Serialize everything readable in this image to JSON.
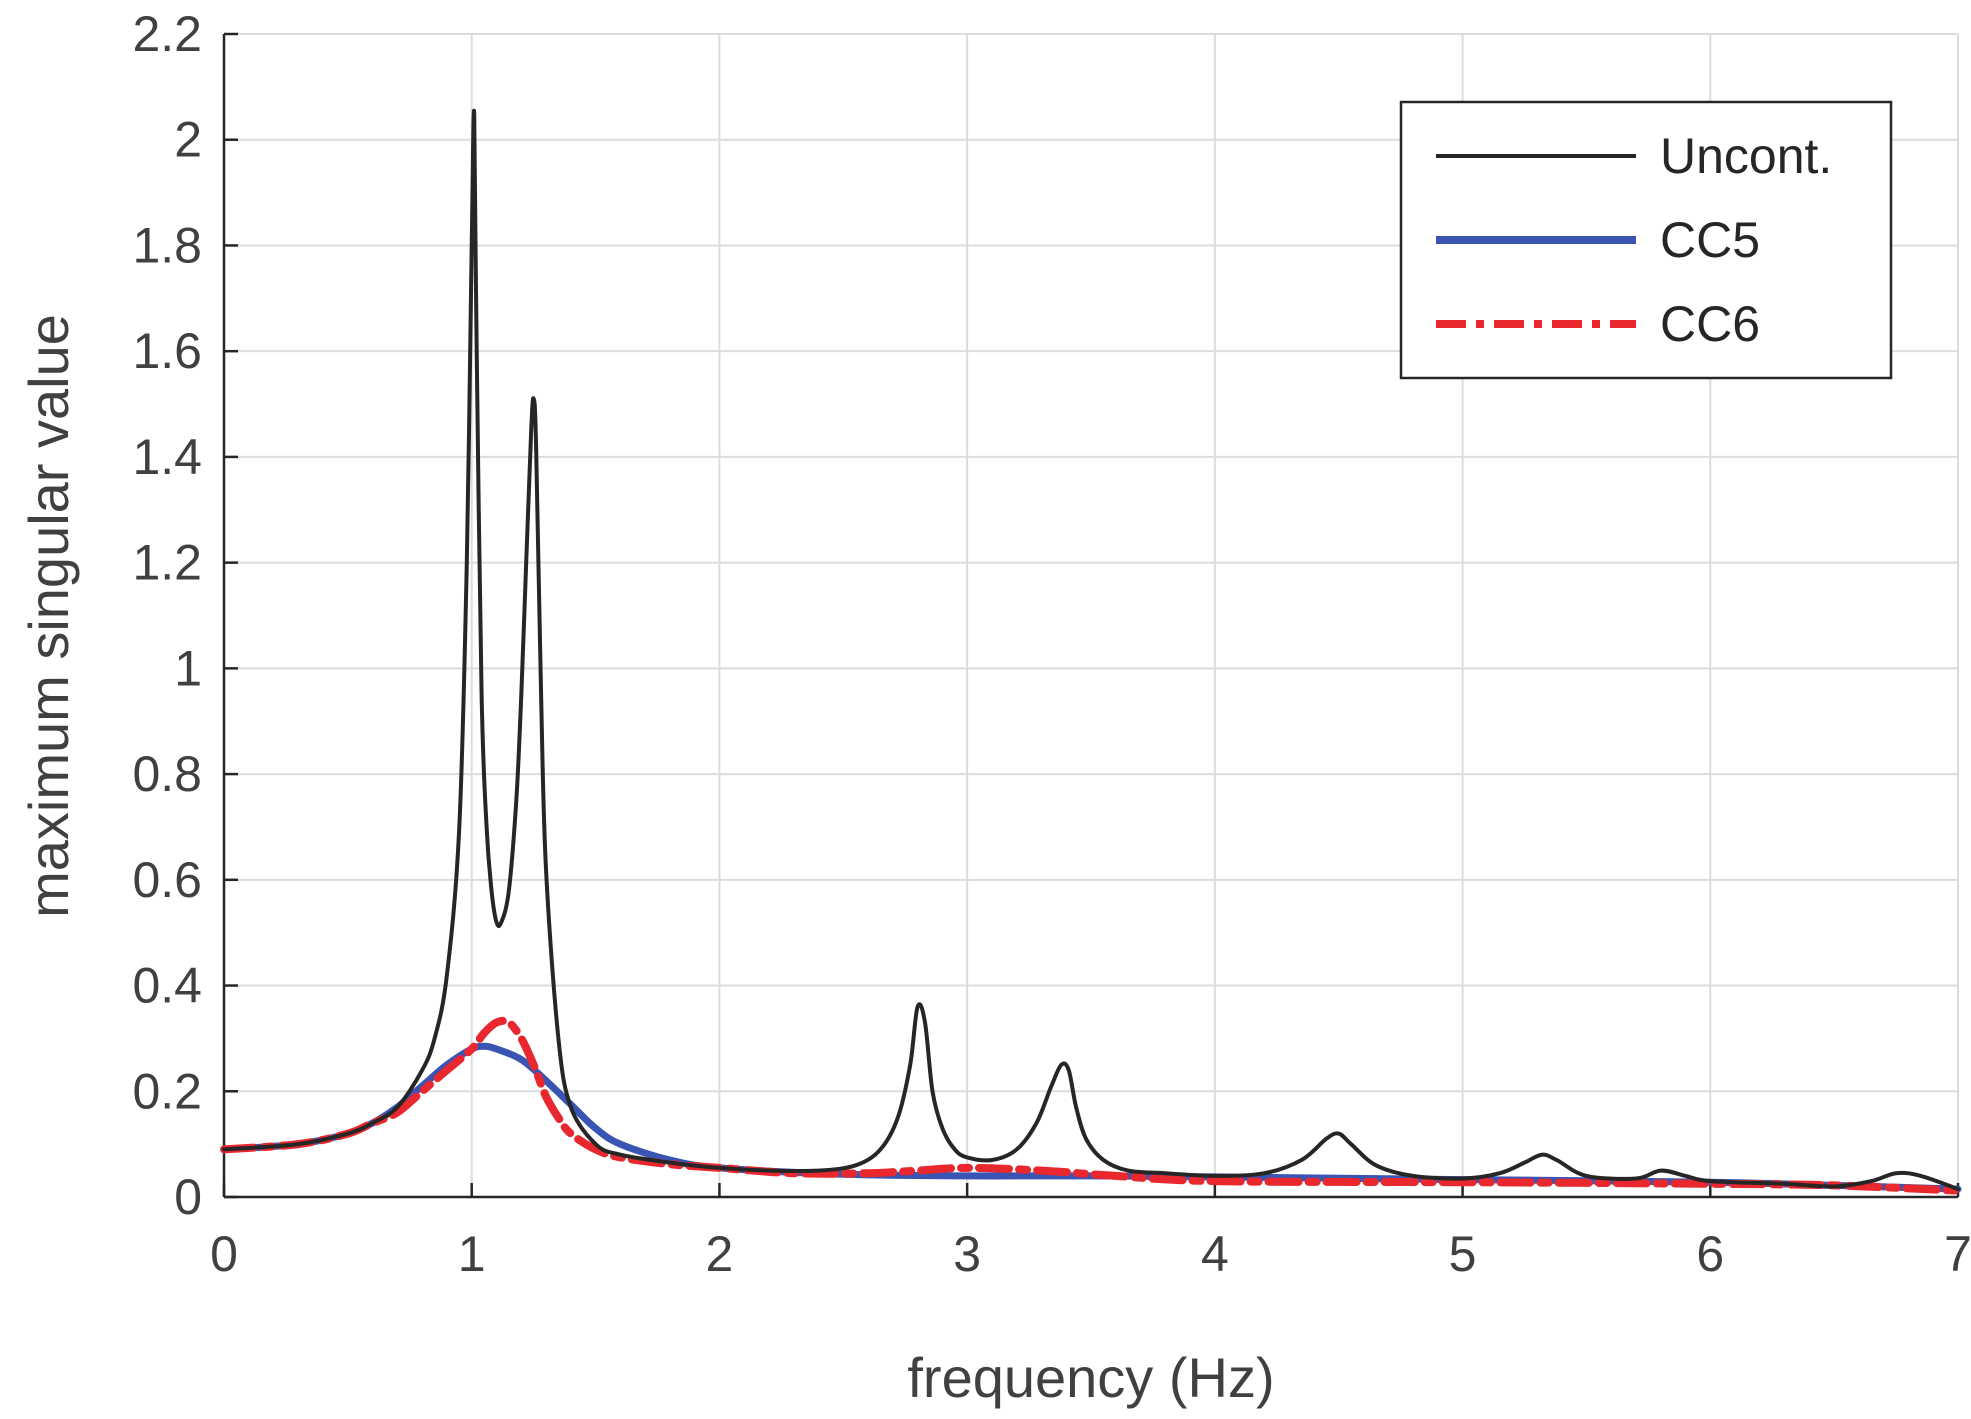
{
  "chart_data": {
    "type": "line",
    "xlabel": "frequency (Hz)",
    "ylabel": "maximum singular value",
    "xlim": [
      0,
      7
    ],
    "ylim": [
      0,
      2.2
    ],
    "xticks": [
      0,
      1,
      2,
      3,
      4,
      5,
      6,
      7
    ],
    "xtick_labels": [
      "0",
      "1",
      "2",
      "3",
      "4",
      "5",
      "6",
      "7"
    ],
    "yticks": [
      0,
      0.2,
      0.4,
      0.6,
      0.8,
      1,
      1.2,
      1.4,
      1.6,
      1.8,
      2,
      2.2
    ],
    "ytick_labels": [
      "0",
      "0.2",
      "0.4",
      "0.6",
      "0.8",
      "1",
      "1.2",
      "1.4",
      "1.6",
      "1.8",
      "2",
      "2.2"
    ],
    "grid": true,
    "legend_position": "top-right",
    "series": [
      {
        "name": "Uncont.",
        "color": "#262626",
        "style": "solid",
        "x": [
          0,
          0.3,
          0.5,
          0.6,
          0.7,
          0.8,
          0.85,
          0.9,
          0.95,
          0.98,
          1.0,
          1.01,
          1.02,
          1.04,
          1.06,
          1.08,
          1.1,
          1.12,
          1.15,
          1.18,
          1.2,
          1.22,
          1.24,
          1.25,
          1.26,
          1.28,
          1.3,
          1.35,
          1.4,
          1.5,
          1.6,
          1.8,
          2.0,
          2.2,
          2.4,
          2.55,
          2.65,
          2.72,
          2.77,
          2.8,
          2.83,
          2.86,
          2.9,
          2.95,
          3.0,
          3.1,
          3.2,
          3.28,
          3.34,
          3.38,
          3.41,
          3.44,
          3.48,
          3.55,
          3.65,
          3.8,
          4.0,
          4.2,
          4.35,
          4.45,
          4.5,
          4.55,
          4.65,
          4.8,
          5.0,
          5.15,
          5.25,
          5.32,
          5.38,
          5.5,
          5.7,
          5.8,
          5.9,
          6.0,
          6.3,
          6.5,
          6.65,
          6.75,
          6.85,
          7.0
        ],
        "y": [
          0.09,
          0.1,
          0.12,
          0.14,
          0.17,
          0.24,
          0.3,
          0.42,
          0.7,
          1.2,
          1.8,
          2.05,
          1.6,
          0.95,
          0.7,
          0.58,
          0.52,
          0.52,
          0.58,
          0.75,
          0.95,
          1.2,
          1.45,
          1.51,
          1.42,
          0.95,
          0.62,
          0.3,
          0.17,
          0.1,
          0.08,
          0.065,
          0.055,
          0.05,
          0.05,
          0.06,
          0.09,
          0.15,
          0.25,
          0.36,
          0.33,
          0.2,
          0.13,
          0.09,
          0.075,
          0.07,
          0.09,
          0.14,
          0.21,
          0.25,
          0.24,
          0.17,
          0.11,
          0.07,
          0.05,
          0.045,
          0.04,
          0.045,
          0.07,
          0.11,
          0.12,
          0.1,
          0.06,
          0.04,
          0.035,
          0.045,
          0.065,
          0.08,
          0.07,
          0.04,
          0.035,
          0.05,
          0.04,
          0.03,
          0.025,
          0.02,
          0.03,
          0.045,
          0.04,
          0.015
        ]
      },
      {
        "name": "CC5",
        "color": "#3a54b4",
        "style": "solid",
        "x": [
          0,
          0.3,
          0.5,
          0.6,
          0.7,
          0.8,
          0.9,
          1.0,
          1.05,
          1.1,
          1.2,
          1.3,
          1.4,
          1.5,
          1.6,
          1.8,
          2.0,
          2.5,
          3.0,
          3.5,
          4.0,
          5.0,
          6.0,
          6.5,
          7.0
        ],
        "y": [
          0.09,
          0.1,
          0.12,
          0.14,
          0.17,
          0.21,
          0.25,
          0.28,
          0.285,
          0.28,
          0.26,
          0.22,
          0.175,
          0.13,
          0.1,
          0.07,
          0.055,
          0.043,
          0.04,
          0.04,
          0.038,
          0.033,
          0.028,
          0.022,
          0.015
        ]
      },
      {
        "name": "CC6",
        "color": "#e8282e",
        "style": "dashdot",
        "x": [
          0,
          0.3,
          0.5,
          0.6,
          0.7,
          0.8,
          0.9,
          1.0,
          1.05,
          1.1,
          1.15,
          1.2,
          1.25,
          1.3,
          1.35,
          1.4,
          1.5,
          1.6,
          1.8,
          2.0,
          2.3,
          2.6,
          2.8,
          3.0,
          3.3,
          3.6,
          4.0,
          5.0,
          6.0,
          6.5,
          7.0
        ],
        "y": [
          0.09,
          0.1,
          0.12,
          0.14,
          0.16,
          0.2,
          0.24,
          0.28,
          0.31,
          0.33,
          0.33,
          0.3,
          0.25,
          0.19,
          0.15,
          0.12,
          0.09,
          0.075,
          0.062,
          0.055,
          0.045,
          0.045,
          0.05,
          0.055,
          0.05,
          0.04,
          0.03,
          0.028,
          0.025,
          0.022,
          0.012
        ]
      }
    ]
  }
}
